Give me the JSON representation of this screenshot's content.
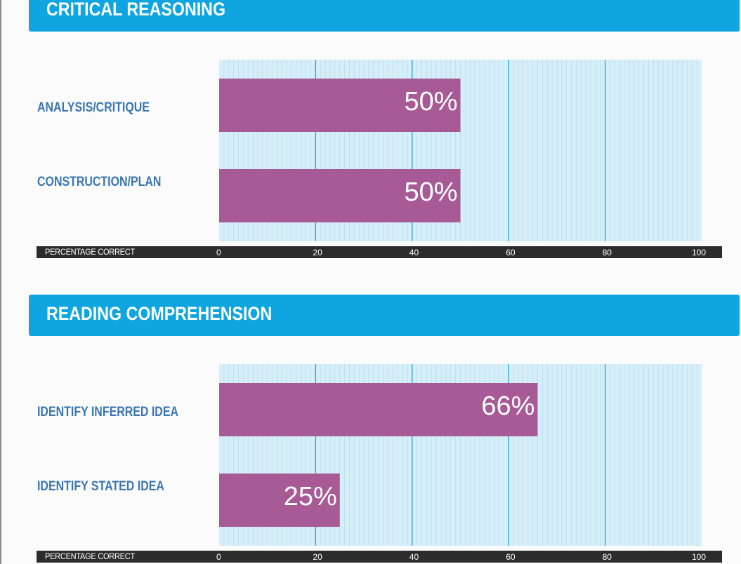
{
  "axis": {
    "label": "PERCENTAGE CORRECT",
    "ticks": [
      0,
      20,
      40,
      60,
      80,
      100
    ],
    "xlim": [
      0,
      100
    ]
  },
  "colors": {
    "header": "#0ea5e0",
    "bar": "#a85a96",
    "label": "#3a76b2",
    "plot_bg": "#d6eef8",
    "grid_minor": "#b7ddef",
    "grid_major": "#1fa6d6",
    "axis_bg": "#2c2c2c"
  },
  "sections": [
    {
      "title": "CRITICAL REASONING",
      "categories": [
        "ANALYSIS/CRITIQUE",
        "CONSTRUCTION/PLAN"
      ],
      "values": [
        50,
        50
      ],
      "value_labels": [
        "50%",
        "50%"
      ]
    },
    {
      "title": "READING COMPREHENSION",
      "categories": [
        "IDENTIFY INFERRED IDEA",
        "IDENTIFY STATED IDEA"
      ],
      "values": [
        66,
        25
      ],
      "value_labels": [
        "66%",
        "25%"
      ]
    }
  ],
  "chart_data": [
    {
      "type": "bar",
      "orientation": "horizontal",
      "title": "CRITICAL REASONING",
      "categories": [
        "ANALYSIS/CRITIQUE",
        "CONSTRUCTION/PLAN"
      ],
      "values": [
        50,
        50
      ],
      "xlabel": "PERCENTAGE CORRECT",
      "xlim": [
        0,
        100
      ],
      "grid": true
    },
    {
      "type": "bar",
      "orientation": "horizontal",
      "title": "READING COMPREHENSION",
      "categories": [
        "IDENTIFY INFERRED IDEA",
        "IDENTIFY STATED IDEA"
      ],
      "values": [
        66,
        25
      ],
      "xlabel": "PERCENTAGE CORRECT",
      "xlim": [
        0,
        100
      ],
      "grid": true
    }
  ]
}
